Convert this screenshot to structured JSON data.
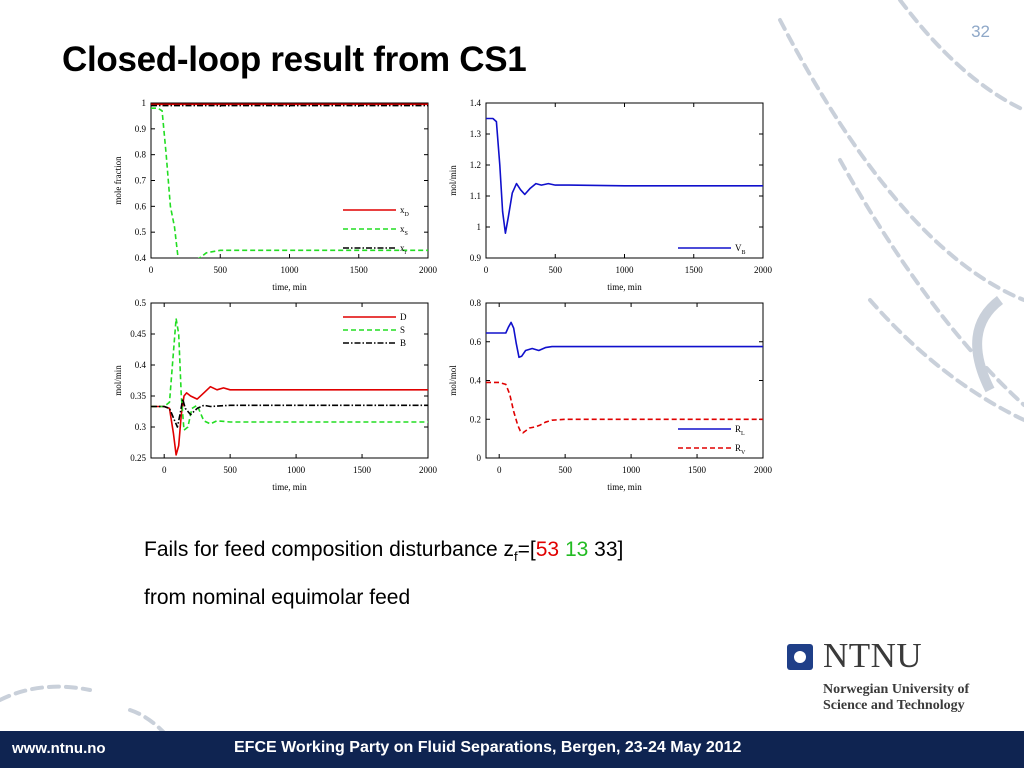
{
  "slide": {
    "number": "32",
    "title": "Closed-loop result from CS1",
    "caption_line1_prefix": "Fails for feed composition disturbance z",
    "caption_sub": "f",
    "caption_eq": "=[",
    "caption_v1": "53",
    "caption_v2": "13",
    "caption_v3": "33]",
    "caption_line2": "from nominal equimolar feed",
    "colors": {
      "title": "#000000",
      "accent_red": "#e00000",
      "accent_green": "#22bb22",
      "footer_bg": "#0f2451",
      "logo_blue": "#1f3f88"
    }
  },
  "logo": {
    "name": "NTNU",
    "line1": "Norwegian University of",
    "line2": "Science and Technology"
  },
  "footer": {
    "url": "www.ntnu.no",
    "event": "EFCE Working Party on Fluid Separations, Bergen, 23-24 May 2012"
  },
  "chart_data": [
    {
      "type": "line",
      "xlabel": "time, min",
      "ylabel": "mole fraction",
      "xlim": [
        0,
        2000
      ],
      "ylim": [
        0.4,
        1
      ],
      "xticks": [
        0,
        500,
        1000,
        1500,
        2000
      ],
      "yticks": [
        0.4,
        0.5,
        0.6,
        0.7,
        0.8,
        0.9,
        1
      ],
      "legend_position": "lower-right",
      "series": [
        {
          "name": "x",
          "sub": "D",
          "color": "#e00000",
          "dash": "solid",
          "x": [
            0,
            500,
            1000,
            1500,
            2000
          ],
          "y": [
            0.995,
            0.995,
            0.995,
            0.995,
            0.995
          ]
        },
        {
          "name": "x",
          "sub": "S",
          "color": "#22dd22",
          "dash": "dashed",
          "x": [
            0,
            50,
            80,
            110,
            140,
            170,
            200,
            280,
            350,
            400,
            500,
            1000,
            2000
          ],
          "y": [
            0.98,
            0.98,
            0.97,
            0.8,
            0.6,
            0.52,
            0.38,
            0.38,
            0.4,
            0.42,
            0.43,
            0.43,
            0.43
          ]
        },
        {
          "name": "x",
          "sub": "r",
          "color": "#000000",
          "dash": "dashdot",
          "x": [
            0,
            500,
            1000,
            1500,
            2000
          ],
          "y": [
            0.99,
            0.99,
            0.99,
            0.99,
            0.99
          ]
        }
      ]
    },
    {
      "type": "line",
      "xlabel": "time, min",
      "ylabel": "mol/min",
      "xlim": [
        0,
        2000
      ],
      "ylim": [
        0.9,
        1.4
      ],
      "xticks": [
        0,
        500,
        1000,
        1500,
        2000
      ],
      "yticks": [
        0.9,
        1,
        1.1,
        1.2,
        1.3,
        1.4
      ],
      "legend_position": "lower-right",
      "series": [
        {
          "name": "V",
          "sub": "B",
          "color": "#1010cc",
          "dash": "solid",
          "x": [
            0,
            50,
            75,
            100,
            120,
            140,
            160,
            190,
            220,
            250,
            280,
            320,
            360,
            400,
            450,
            500,
            600,
            1000,
            2000
          ],
          "y": [
            1.35,
            1.35,
            1.34,
            1.2,
            1.05,
            0.98,
            1.03,
            1.11,
            1.14,
            1.12,
            1.105,
            1.125,
            1.14,
            1.135,
            1.14,
            1.135,
            1.135,
            1.133,
            1.133
          ]
        }
      ]
    },
    {
      "type": "line",
      "xlabel": "time, min",
      "ylabel": "mol/min",
      "xlim": [
        -100,
        2000
      ],
      "ylim": [
        0.25,
        0.5
      ],
      "xticks": [
        0,
        500,
        1000,
        1500,
        2000
      ],
      "yticks": [
        0.25,
        0.3,
        0.35,
        0.4,
        0.45,
        0.5
      ],
      "legend_position": "upper-right",
      "series": [
        {
          "name": "D",
          "color": "#e00000",
          "dash": "solid",
          "x": [
            -100,
            0,
            40,
            70,
            90,
            110,
            130,
            150,
            170,
            200,
            250,
            300,
            350,
            400,
            450,
            500,
            1000,
            2000
          ],
          "y": [
            0.333,
            0.333,
            0.33,
            0.29,
            0.255,
            0.27,
            0.32,
            0.35,
            0.355,
            0.35,
            0.345,
            0.355,
            0.365,
            0.36,
            0.363,
            0.36,
            0.36,
            0.36
          ]
        },
        {
          "name": "S",
          "color": "#22dd22",
          "dash": "dashed",
          "x": [
            -100,
            0,
            40,
            70,
            90,
            110,
            130,
            150,
            180,
            210,
            250,
            300,
            350,
            400,
            500,
            1000,
            2000
          ],
          "y": [
            0.333,
            0.333,
            0.34,
            0.42,
            0.475,
            0.45,
            0.35,
            0.295,
            0.3,
            0.33,
            0.335,
            0.31,
            0.305,
            0.31,
            0.308,
            0.308,
            0.308
          ]
        },
        {
          "name": "B",
          "color": "#000000",
          "dash": "dashdot",
          "x": [
            -100,
            0,
            40,
            80,
            100,
            120,
            140,
            160,
            200,
            250,
            300,
            350,
            500,
            1000,
            2000
          ],
          "y": [
            0.333,
            0.333,
            0.33,
            0.31,
            0.3,
            0.32,
            0.345,
            0.33,
            0.32,
            0.33,
            0.335,
            0.333,
            0.335,
            0.335,
            0.335
          ]
        }
      ]
    },
    {
      "type": "line",
      "xlabel": "time, min",
      "ylabel": "mol/mol",
      "xlim": [
        -100,
        2000
      ],
      "ylim": [
        0,
        0.8
      ],
      "xticks": [
        0,
        500,
        1000,
        1500,
        2000
      ],
      "yticks": [
        0,
        0.2,
        0.4,
        0.6,
        0.8
      ],
      "legend_position": "lower-right",
      "series": [
        {
          "name": "R",
          "sub": "L",
          "color": "#1010cc",
          "dash": "solid",
          "x": [
            -100,
            0,
            50,
            70,
            90,
            110,
            130,
            150,
            170,
            200,
            250,
            300,
            350,
            400,
            500,
            1000,
            2000
          ],
          "y": [
            0.645,
            0.645,
            0.645,
            0.675,
            0.7,
            0.67,
            0.59,
            0.52,
            0.525,
            0.555,
            0.565,
            0.555,
            0.57,
            0.575,
            0.575,
            0.575,
            0.575
          ]
        },
        {
          "name": "R",
          "sub": "V",
          "color": "#e00000",
          "dash": "dashed",
          "x": [
            -100,
            0,
            50,
            80,
            110,
            140,
            160,
            180,
            200,
            230,
            270,
            310,
            350,
            400,
            500,
            1000,
            2000
          ],
          "y": [
            0.39,
            0.39,
            0.38,
            0.33,
            0.24,
            0.17,
            0.14,
            0.13,
            0.14,
            0.155,
            0.16,
            0.17,
            0.185,
            0.195,
            0.2,
            0.2,
            0.2
          ]
        }
      ]
    }
  ]
}
